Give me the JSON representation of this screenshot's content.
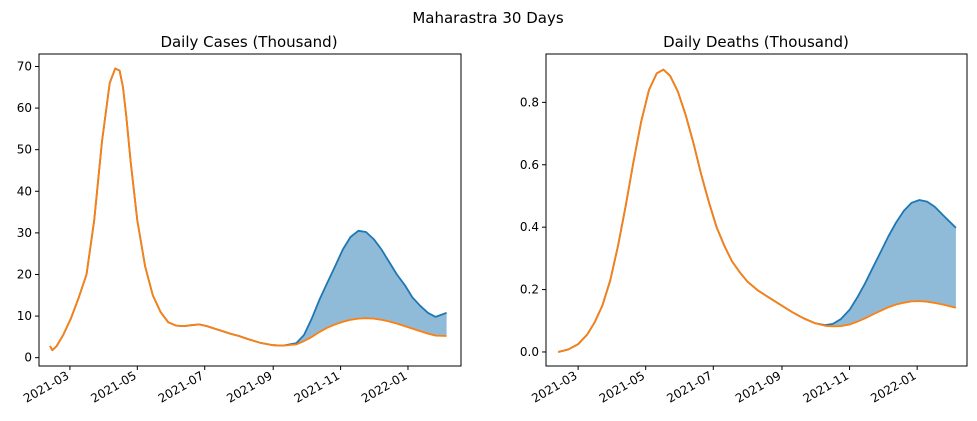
{
  "figure": {
    "suptitle": "Maharastra 30 Days"
  },
  "colors": {
    "upper_line": "#1f77b4",
    "lower_line": "#ff7f0e",
    "fill": "#1f77b4",
    "fill_opacity": 0.5
  },
  "chart_data": [
    {
      "type": "line",
      "title": "Daily Cases (Thousand)",
      "xlabel": "",
      "ylabel": "",
      "x_axis": "date",
      "xlim": [
        "2021-02-01",
        "2022-02-18"
      ],
      "ylim": [
        -2,
        73
      ],
      "x_tick_labels": [
        "2021-03",
        "2021-05",
        "2021-07",
        "2021-09",
        "2021-11",
        "2022-01"
      ],
      "x_tick_dates": [
        "2021-03-01",
        "2021-05-01",
        "2021-07-01",
        "2021-09-01",
        "2021-11-01",
        "2022-01-01"
      ],
      "y_ticks": [
        0,
        10,
        20,
        30,
        40,
        50,
        60,
        70
      ],
      "y_tick_labels": [
        "0",
        "10",
        "20",
        "30",
        "40",
        "50",
        "60",
        "70"
      ],
      "grid": false,
      "series": [
        {
          "role": "upper",
          "x": [
            "2021-02-11",
            "2021-02-13",
            "2021-02-17",
            "2021-02-23",
            "2021-03-02",
            "2021-03-09",
            "2021-03-16",
            "2021-03-23",
            "2021-03-30",
            "2021-04-06",
            "2021-04-11",
            "2021-04-15",
            "2021-04-18",
            "2021-04-21",
            "2021-04-25",
            "2021-05-01",
            "2021-05-08",
            "2021-05-15",
            "2021-05-22",
            "2021-05-29",
            "2021-06-05",
            "2021-06-12",
            "2021-06-19",
            "2021-06-26",
            "2021-07-03",
            "2021-07-10",
            "2021-07-17",
            "2021-07-24",
            "2021-08-01",
            "2021-08-10",
            "2021-08-20",
            "2021-09-01",
            "2021-09-10",
            "2021-09-22",
            "2021-09-29",
            "2021-10-06",
            "2021-10-13",
            "2021-10-20",
            "2021-10-27",
            "2021-11-03",
            "2021-11-10",
            "2021-11-17",
            "2021-11-24",
            "2021-12-01",
            "2021-12-08",
            "2021-12-15",
            "2021-12-22",
            "2021-12-29",
            "2022-01-05",
            "2022-01-12",
            "2022-01-19",
            "2022-01-26",
            "2022-02-05"
          ],
          "y": [
            2.8,
            1.8,
            2.8,
            5.5,
            9.5,
            14.5,
            20,
            33,
            52,
            66,
            69.5,
            69,
            65,
            58,
            47,
            33,
            22,
            15,
            11,
            8.5,
            7.7,
            7.6,
            7.8,
            8.0,
            7.6,
            7.0,
            6.4,
            5.8,
            5.2,
            4.4,
            3.6,
            3.0,
            2.9,
            3.5,
            5.5,
            9.5,
            14,
            18,
            22,
            26,
            29,
            30.5,
            30.2,
            28.5,
            26,
            23,
            20,
            17.5,
            14.5,
            12.5,
            10.8,
            9.8,
            10.8
          ]
        },
        {
          "role": "lower",
          "x": [
            "2021-02-11",
            "2021-02-13",
            "2021-02-17",
            "2021-02-23",
            "2021-03-02",
            "2021-03-09",
            "2021-03-16",
            "2021-03-23",
            "2021-03-30",
            "2021-04-06",
            "2021-04-11",
            "2021-04-15",
            "2021-04-18",
            "2021-04-21",
            "2021-04-25",
            "2021-05-01",
            "2021-05-08",
            "2021-05-15",
            "2021-05-22",
            "2021-05-29",
            "2021-06-05",
            "2021-06-12",
            "2021-06-19",
            "2021-06-26",
            "2021-07-03",
            "2021-07-10",
            "2021-07-17",
            "2021-07-24",
            "2021-08-01",
            "2021-08-10",
            "2021-08-20",
            "2021-09-01",
            "2021-09-10",
            "2021-09-22",
            "2021-09-29",
            "2021-10-06",
            "2021-10-13",
            "2021-10-20",
            "2021-10-27",
            "2021-11-03",
            "2021-11-10",
            "2021-11-17",
            "2021-11-24",
            "2021-12-01",
            "2021-12-08",
            "2021-12-15",
            "2021-12-22",
            "2021-12-29",
            "2022-01-05",
            "2022-01-12",
            "2022-01-19",
            "2022-01-26",
            "2022-02-05"
          ],
          "y": [
            2.8,
            1.8,
            2.8,
            5.5,
            9.5,
            14.5,
            20,
            33,
            52,
            66,
            69.5,
            69,
            65,
            58,
            47,
            33,
            22,
            15,
            11,
            8.5,
            7.7,
            7.6,
            7.8,
            8.0,
            7.6,
            7.0,
            6.4,
            5.8,
            5.2,
            4.4,
            3.6,
            3.0,
            2.9,
            3.2,
            4.0,
            5.0,
            6.2,
            7.2,
            8.0,
            8.6,
            9.1,
            9.4,
            9.5,
            9.4,
            9.1,
            8.7,
            8.2,
            7.6,
            7.0,
            6.4,
            5.8,
            5.3,
            5.2
          ]
        }
      ],
      "fill_between": true
    },
    {
      "type": "line",
      "title": "Daily Deaths (Thousand)",
      "xlabel": "",
      "ylabel": "",
      "x_axis": "date",
      "xlim": [
        "2021-01-31",
        "2022-02-15"
      ],
      "ylim": [
        -0.045,
        0.955
      ],
      "x_tick_labels": [
        "2021-03",
        "2021-05",
        "2021-07",
        "2021-09",
        "2021-11",
        "2022-01"
      ],
      "x_tick_dates": [
        "2021-03-01",
        "2021-05-01",
        "2021-07-01",
        "2021-09-01",
        "2021-11-01",
        "2022-01-01"
      ],
      "y_ticks": [
        0.0,
        0.2,
        0.4,
        0.6,
        0.8
      ],
      "y_tick_labels": [
        "0.0",
        "0.2",
        "0.4",
        "0.6",
        "0.8"
      ],
      "grid": false,
      "series": [
        {
          "role": "upper",
          "x": [
            "2021-02-11",
            "2021-02-20",
            "2021-03-01",
            "2021-03-09",
            "2021-03-16",
            "2021-03-23",
            "2021-03-30",
            "2021-04-06",
            "2021-04-13",
            "2021-04-20",
            "2021-04-27",
            "2021-05-04",
            "2021-05-11",
            "2021-05-17",
            "2021-05-23",
            "2021-05-30",
            "2021-06-06",
            "2021-06-13",
            "2021-06-20",
            "2021-06-27",
            "2021-07-04",
            "2021-07-11",
            "2021-07-18",
            "2021-07-25",
            "2021-08-01",
            "2021-08-10",
            "2021-08-20",
            "2021-09-01",
            "2021-09-10",
            "2021-09-20",
            "2021-10-01",
            "2021-10-10",
            "2021-10-17",
            "2021-10-24",
            "2021-11-01",
            "2021-11-08",
            "2021-11-15",
            "2021-11-22",
            "2021-11-29",
            "2021-12-06",
            "2021-12-13",
            "2021-12-20",
            "2021-12-27",
            "2022-01-03",
            "2022-01-10",
            "2022-01-17",
            "2022-01-24",
            "2022-02-05"
          ],
          "y": [
            0.0,
            0.008,
            0.025,
            0.055,
            0.095,
            0.15,
            0.23,
            0.34,
            0.47,
            0.61,
            0.74,
            0.84,
            0.893,
            0.905,
            0.885,
            0.835,
            0.76,
            0.67,
            0.57,
            0.48,
            0.4,
            0.34,
            0.29,
            0.255,
            0.225,
            0.198,
            0.175,
            0.148,
            0.128,
            0.109,
            0.092,
            0.086,
            0.09,
            0.105,
            0.135,
            0.175,
            0.22,
            0.27,
            0.32,
            0.37,
            0.415,
            0.452,
            0.478,
            0.487,
            0.482,
            0.465,
            0.44,
            0.398
          ]
        },
        {
          "role": "lower",
          "x": [
            "2021-02-11",
            "2021-02-20",
            "2021-03-01",
            "2021-03-09",
            "2021-03-16",
            "2021-03-23",
            "2021-03-30",
            "2021-04-06",
            "2021-04-13",
            "2021-04-20",
            "2021-04-27",
            "2021-05-04",
            "2021-05-11",
            "2021-05-17",
            "2021-05-23",
            "2021-05-30",
            "2021-06-06",
            "2021-06-13",
            "2021-06-20",
            "2021-06-27",
            "2021-07-04",
            "2021-07-11",
            "2021-07-18",
            "2021-07-25",
            "2021-08-01",
            "2021-08-10",
            "2021-08-20",
            "2021-09-01",
            "2021-09-10",
            "2021-09-20",
            "2021-10-01",
            "2021-10-10",
            "2021-10-17",
            "2021-10-24",
            "2021-11-01",
            "2021-11-08",
            "2021-11-15",
            "2021-11-22",
            "2021-11-29",
            "2021-12-06",
            "2021-12-13",
            "2021-12-20",
            "2021-12-27",
            "2022-01-03",
            "2022-01-10",
            "2022-01-17",
            "2022-01-24",
            "2022-02-05"
          ],
          "y": [
            0.0,
            0.008,
            0.025,
            0.055,
            0.095,
            0.15,
            0.23,
            0.34,
            0.47,
            0.61,
            0.74,
            0.84,
            0.893,
            0.905,
            0.885,
            0.835,
            0.76,
            0.67,
            0.57,
            0.48,
            0.4,
            0.34,
            0.29,
            0.255,
            0.225,
            0.198,
            0.175,
            0.148,
            0.128,
            0.109,
            0.092,
            0.084,
            0.082,
            0.083,
            0.088,
            0.097,
            0.108,
            0.12,
            0.132,
            0.143,
            0.152,
            0.158,
            0.162,
            0.163,
            0.161,
            0.157,
            0.152,
            0.142
          ]
        }
      ],
      "fill_between": true
    }
  ]
}
